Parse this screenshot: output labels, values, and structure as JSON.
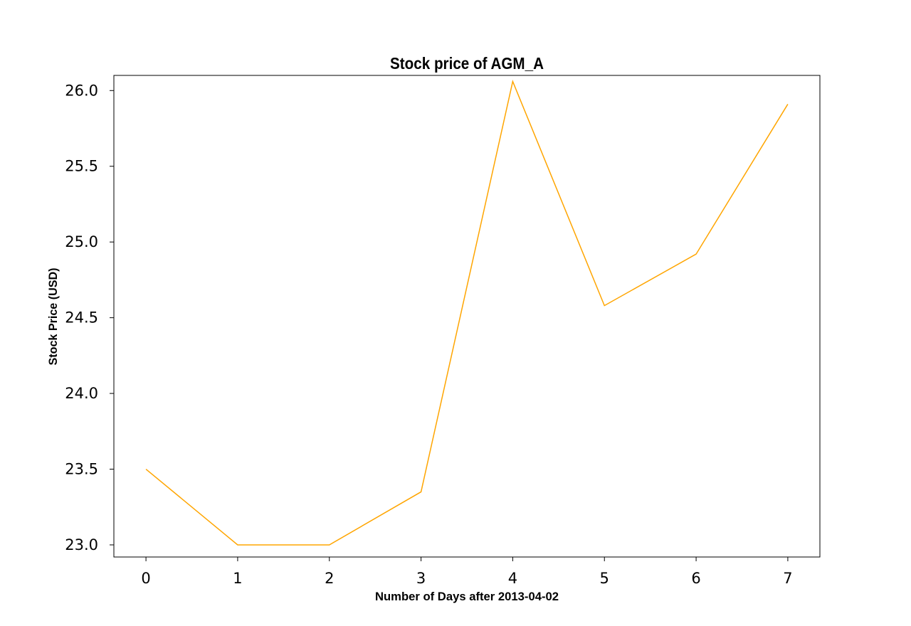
{
  "chart_data": {
    "type": "line",
    "title": "Stock price of AGM_A",
    "xlabel": "Number of Days after 2013-04-02",
    "ylabel": "Stock Price (USD)",
    "x": [
      0,
      1,
      2,
      3,
      4,
      5,
      6,
      7
    ],
    "xticks": [
      "0",
      "1",
      "2",
      "3",
      "4",
      "5",
      "6",
      "7"
    ],
    "yticks": [
      "23.0",
      "23.5",
      "24.0",
      "24.5",
      "25.0",
      "25.5",
      "26.0"
    ],
    "xlim": [
      -0.35,
      7.35
    ],
    "ylim": [
      22.92,
      26.1
    ],
    "grid": false,
    "series": [
      {
        "values": [
          23.5,
          23.0,
          23.0,
          23.35,
          26.06,
          24.58,
          24.92,
          25.91
        ],
        "color": "#FFA500"
      }
    ]
  }
}
